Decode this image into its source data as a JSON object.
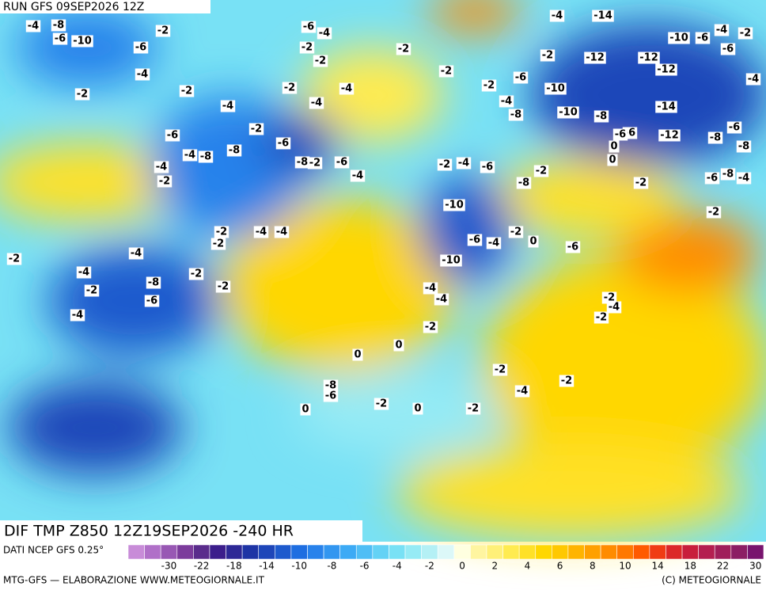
{
  "header": {
    "run": "RUN GFS 09SEP2026 12Z"
  },
  "map": {
    "field": "DIF TMP Z850 12Z19SEP2026 -240 HR",
    "contour_labels": [
      -4,
      -8,
      -6,
      -10,
      -2,
      -6,
      -4,
      -2,
      -6,
      -2,
      -4,
      -2,
      -2,
      -2,
      -4,
      -14,
      -10,
      -6,
      -4,
      -2,
      -12,
      -12,
      -12,
      -6,
      -4,
      -2,
      -4,
      -2,
      -4,
      -6,
      -10,
      -8,
      -14,
      -6,
      -8,
      -6,
      -4,
      -6,
      -12,
      -8,
      -6,
      -8,
      -4,
      -2,
      -2,
      -4,
      -4,
      -2,
      -6,
      -8,
      -6,
      -4,
      -8,
      -2,
      -8,
      -10,
      -8,
      -6,
      -4,
      0,
      0,
      -2,
      -2,
      -4,
      -2,
      -6,
      -8,
      -10,
      -6,
      -4,
      -2,
      -2,
      -2,
      -4,
      -4,
      -2,
      -2,
      -4,
      -2,
      0,
      -6,
      -10,
      -8,
      -6,
      -4,
      -2,
      -4,
      -2,
      -2,
      -4,
      -4,
      -2,
      0,
      0,
      -2,
      -4,
      -2,
      -2,
      -4,
      -2,
      -2,
      -8,
      -6,
      0,
      -2,
      0
    ],
    "footer_left": "DATI NCEP GFS 0.25°",
    "credit_left": "MTG-GFS — ELABORAZIONE WWW.METEOGIORNALE.IT",
    "credit_right": "(C) METEOGIORNALE",
    "colorbar": {
      "colors": [
        "#c88cd8",
        "#b070c8",
        "#9858b4",
        "#7c3c9c",
        "#5a2c8c",
        "#3c1e8c",
        "#2d2896",
        "#1e34a5",
        "#1e46b9",
        "#1e5acd",
        "#1e6ee1",
        "#2882eb",
        "#3296f0",
        "#3caaf5",
        "#50bef5",
        "#64d2f5",
        "#78e1f5",
        "#96ebf5",
        "#b4f0f5",
        "#dcf8f8",
        "#ffffe0",
        "#fff5a0",
        "#fff078",
        "#ffeb50",
        "#ffe128",
        "#ffd700",
        "#ffc800",
        "#ffb400",
        "#ffa000",
        "#ff8c00",
        "#ff7800",
        "#ff5a00",
        "#f03c14",
        "#dc2828",
        "#c81e3c",
        "#b41e50",
        "#a01e5a",
        "#8c1e64",
        "#78146e"
      ],
      "labels": [
        -30,
        -22,
        -18,
        -14,
        -10,
        -8,
        -6,
        -4,
        -2,
        0,
        2,
        4,
        6,
        8,
        10,
        14,
        18,
        22,
        30
      ]
    }
  }
}
